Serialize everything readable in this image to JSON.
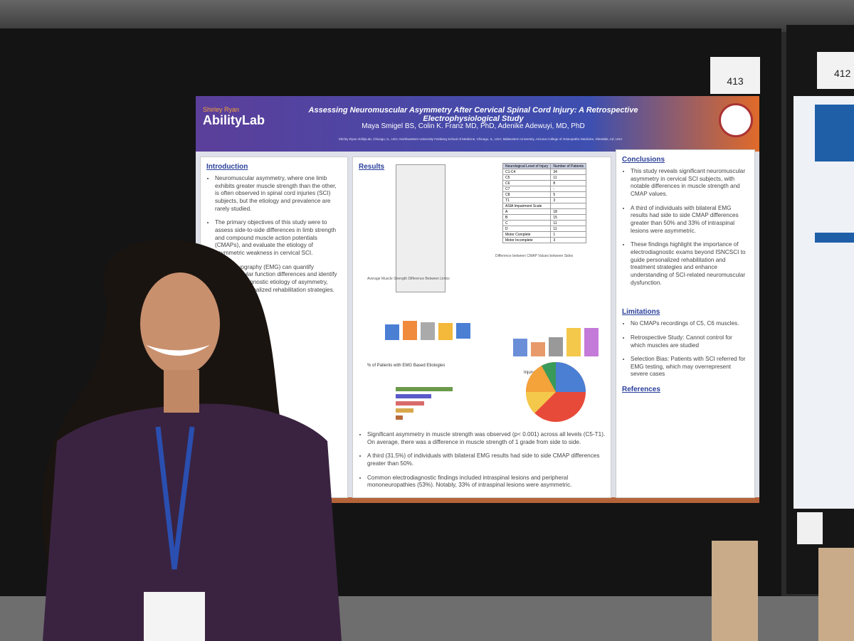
{
  "board_numbers": [
    "413",
    "412"
  ],
  "poster": {
    "logo_top": "Shirley Ryan",
    "logo_bottom": "AbilityLab",
    "title": "Assessing Neuromuscular Asymmetry After Cervical Spinal Cord Injury: A Retrospective Electrophysiological Study",
    "authors": "Maya Smigel BS, Colin K. Franz MD, PhD, Adenike Adewuyi, MD, PhD",
    "affiliation": "Shirley Ryan AbilityLab, Chicago, IL, USA; Northwestern University Feinberg School of Medicine, Chicago, IL, USA; Midwestern University, Arizona College of Osteopathic Medicine, Glendale, AZ, USA",
    "introduction": {
      "heading": "Introduction",
      "bullets": [
        "Neuromuscular asymmetry, where one limb exhibits greater muscle strength than the other, is often observed in spinal cord injuries (SCI) subjects, but the etiology and prevalence are rarely studied.",
        "The primary objectives of this study were to assess side-to-side differences in limb strength and compound muscle action potentials (CMAPs), and evaluate the etiology of asymmetric weakness in cervical SCI.",
        "Electromyography (EMG) can quantify neuromuscular function differences and identify the electrodiagnostic etiology of asymmetry, aiding in personalized rehabilitation strategies."
      ]
    },
    "results": {
      "heading": "Results",
      "table": {
        "header": [
          "Neurological Level of Injury",
          "Number of Patients"
        ],
        "rows": [
          [
            "C1-C4",
            "34"
          ],
          [
            "C5",
            "11"
          ],
          [
            "C6",
            "8"
          ],
          [
            "C7",
            "-"
          ],
          [
            "C8",
            "5"
          ],
          [
            "T1",
            "3"
          ],
          [
            "ASIA Impairment Scale",
            ""
          ],
          [
            "A",
            "18"
          ],
          [
            "B",
            "15"
          ],
          [
            "C",
            "11"
          ],
          [
            "D",
            "11"
          ],
          [
            "Motor Complete",
            "1"
          ],
          [
            "Motor Incomplete",
            "3"
          ]
        ]
      },
      "chart_titles": [
        "Average Muscle Strength Difference Between Limbs",
        "Difference between CMAP Values between Sides",
        "% of Patients with EMG Based Etiologies",
        "Injury Mechanism"
      ],
      "bullets": [
        "Significant asymmetry in muscle strength was observed (p< 0.001) across all levels (C5-T1). On average, there was a difference in muscle strength of 1 grade from side to side.",
        "A third (31.5%) of individuals with bilateral EMG results had side to side CMAP differences greater than 50%.",
        "Common electrodiagnostic findings included intraspinal lesions and peripheral mononeuropathies (53%). Notably, 33% of intraspinal lesions were asymmetric."
      ]
    },
    "conclusions": {
      "heading": "Conclusions",
      "bullets": [
        "This study reveals significant neuromuscular asymmetry in cervical SCI subjects, with notable differences in muscle strength and CMAP values.",
        "A third of individuals with bilateral EMG results had side to side CMAP differences greater than 50% and 33% of intraspinal lesions were asymmetric.",
        "These findings highlight the importance of electrodiagnostic exams beyond ISNCSCI to guide personalized rehabilitation and treatment strategies and enhance understanding of SCI-related neuromuscular dysfunction."
      ]
    },
    "limitations": {
      "heading": "Limitations",
      "bullets": [
        "No CMAPs recordings of C5, C6 muscles.",
        "Retrospective Study: Cannot control for which muscles are studied",
        "Selection Bias: Patients with SCI referred for EMG testing, which may overrepresent severe cases"
      ]
    },
    "references": {
      "heading": "References"
    }
  }
}
